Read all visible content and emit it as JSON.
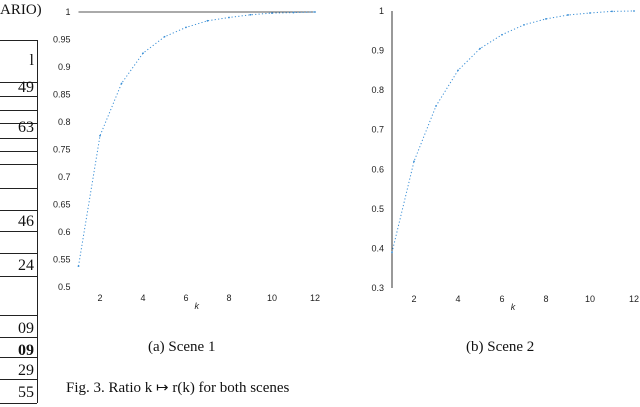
{
  "table_fragment": {
    "caption_fragment": "ARIO)",
    "header": "l",
    "cells": [
      {
        "text": "49",
        "bold": false
      },
      {
        "text": "63",
        "bold": false
      },
      {
        "text": "46",
        "bold": false
      },
      {
        "text": "24",
        "bold": false
      },
      {
        "text": "09",
        "bold": false
      },
      {
        "text": "09",
        "bold": true
      },
      {
        "text": "29",
        "bold": false
      },
      {
        "text": "55",
        "bold": false
      }
    ]
  },
  "subfigures": [
    {
      "caption": "(a)  Scene 1"
    },
    {
      "caption": "(b)  Scene 2"
    }
  ],
  "figure_caption": "Fig. 3.   Ratio k ↦ r(k) for both scenes",
  "chart_data": [
    {
      "type": "line",
      "xlabel": "k",
      "ylabel": "",
      "xlim": [
        1,
        12
      ],
      "ylim": [
        0.5,
        1
      ],
      "xticks": [
        2,
        4,
        6,
        8,
        10,
        12
      ],
      "yticks": [
        0.5,
        0.55,
        0.6,
        0.65,
        0.7,
        0.75,
        0.8,
        0.85,
        0.9,
        0.95,
        1
      ],
      "grid": false,
      "line_style": "dotted",
      "color": "#3a8fd6",
      "reference_line": 1,
      "x": [
        1,
        2,
        3,
        4,
        5,
        6,
        7,
        8,
        9,
        10,
        11,
        12
      ],
      "y": [
        0.538,
        0.775,
        0.87,
        0.925,
        0.955,
        0.972,
        0.984,
        0.99,
        0.995,
        0.998,
        0.999,
        1.0
      ]
    },
    {
      "type": "line",
      "xlabel": "k",
      "ylabel": "",
      "xlim": [
        1,
        12
      ],
      "ylim": [
        0.3,
        1
      ],
      "xticks": [
        2,
        4,
        6,
        8,
        10,
        12
      ],
      "yticks": [
        0.3,
        0.4,
        0.5,
        0.6,
        0.7,
        0.8,
        0.9,
        1
      ],
      "grid": false,
      "line_style": "dotted",
      "color": "#3a8fd6",
      "x": [
        1,
        2,
        3,
        4,
        5,
        6,
        7,
        8,
        9,
        10,
        11,
        12
      ],
      "y": [
        0.39,
        0.62,
        0.76,
        0.85,
        0.905,
        0.94,
        0.965,
        0.98,
        0.99,
        0.995,
        0.999,
        1.0
      ]
    }
  ]
}
